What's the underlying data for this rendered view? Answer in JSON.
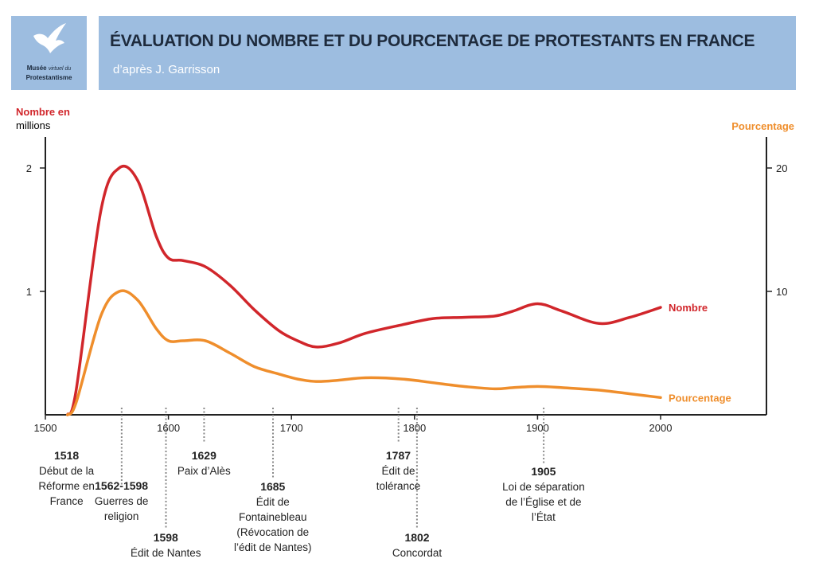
{
  "header": {
    "title": "ÉVALUATION DU NOMBRE ET DU POURCENTAGE DE PROTESTANTS EN FRANCE",
    "subtitle": "d’après J. Garrisson"
  },
  "logo": {
    "line1_bold": "Musée",
    "line1_italic": "virtuel du",
    "line2": "Protestantisme"
  },
  "axes": {
    "left_label_part1": "Nombre en",
    "left_label_part2": "millions",
    "right_label": "Pourcentage"
  },
  "colors": {
    "header_bg": "#9dbde0",
    "nombre": "#d1262b",
    "pourcentage": "#ef8e2c",
    "axis": "#222222"
  },
  "chart_data": {
    "type": "line",
    "title": "ÉVALUATION DU NOMBRE ET DU POURCENTAGE DE PROTESTANTS EN FRANCE",
    "xlabel": "",
    "ylabel": "Nombre en millions",
    "y2label": "Pourcentage",
    "xlim": [
      1500,
      2060
    ],
    "ylim": [
      0,
      2.25
    ],
    "y2lim": [
      0,
      22.5
    ],
    "x_ticks": [
      1500,
      1600,
      1700,
      1800,
      1900,
      2000
    ],
    "y_ticks": [
      1,
      2
    ],
    "y2_ticks": [
      10,
      20
    ],
    "series": [
      {
        "name": "Nombre",
        "axis": "left",
        "x": [
          1518,
          1525,
          1545,
          1560,
          1575,
          1590,
          1600,
          1612,
          1630,
          1650,
          1670,
          1690,
          1705,
          1720,
          1738,
          1760,
          1790,
          1815,
          1840,
          1865,
          1880,
          1900,
          1920,
          1950,
          1975,
          2000
        ],
        "y": [
          0.0,
          0.2,
          1.65,
          2.0,
          1.9,
          1.45,
          1.27,
          1.25,
          1.2,
          1.05,
          0.85,
          0.68,
          0.6,
          0.55,
          0.58,
          0.66,
          0.73,
          0.78,
          0.79,
          0.8,
          0.84,
          0.9,
          0.84,
          0.74,
          0.79,
          0.87
        ]
      },
      {
        "name": "Pourcentage",
        "axis": "right",
        "x": [
          1518,
          1525,
          1545,
          1560,
          1575,
          1590,
          1600,
          1612,
          1630,
          1650,
          1670,
          1690,
          1705,
          1720,
          1738,
          1760,
          1790,
          1815,
          1840,
          1865,
          1880,
          1900,
          1920,
          1950,
          1975,
          2000
        ],
        "y": [
          0.0,
          1.0,
          8.0,
          10.0,
          9.3,
          7.0,
          6.0,
          6.0,
          6.0,
          5.0,
          3.9,
          3.3,
          2.9,
          2.7,
          2.8,
          3.0,
          2.9,
          2.6,
          2.3,
          2.1,
          2.2,
          2.3,
          2.2,
          2.0,
          1.7,
          1.4
        ]
      }
    ],
    "series_labels": [
      "Nombre",
      "Pourcentage"
    ],
    "events": [
      {
        "year": 1518,
        "marker": false,
        "label_year": "1518",
        "lines": [
          "Début de la",
          "Réforme en",
          "France"
        ]
      },
      {
        "year": 1562,
        "marker": true,
        "label_year": "1562-1598",
        "lines": [
          "Guerres de",
          "religion"
        ]
      },
      {
        "year": 1598,
        "marker": true,
        "label_year": "1598",
        "lines": [
          "Édit de Nantes"
        ]
      },
      {
        "year": 1629,
        "marker": true,
        "label_year": "1629",
        "lines": [
          "Paix d’Alès"
        ]
      },
      {
        "year": 1685,
        "marker": true,
        "label_year": "1685",
        "lines": [
          "Édit de",
          "Fontainebleau",
          "(Révocation de",
          "l’édit de Nantes)"
        ]
      },
      {
        "year": 1787,
        "marker": true,
        "label_year": "1787",
        "lines": [
          "Édit de",
          "tolérance"
        ]
      },
      {
        "year": 1802,
        "marker": true,
        "label_year": "1802",
        "lines": [
          "Concordat"
        ]
      },
      {
        "year": 1905,
        "marker": true,
        "label_year": "1905",
        "lines": [
          "Loi de séparation",
          "de l’Église et de",
          "l’État"
        ]
      }
    ]
  }
}
